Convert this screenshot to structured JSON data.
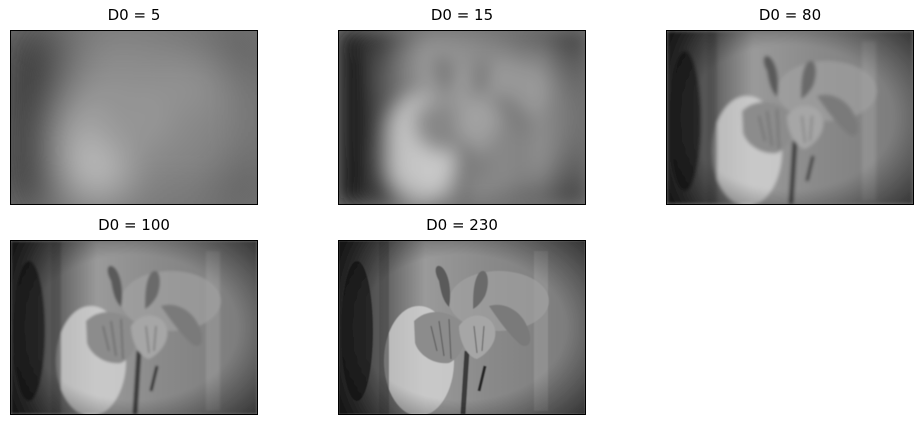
{
  "figure": {
    "panels": [
      {
        "title": "D0 = 5",
        "cutoff": 5,
        "image": "flower-photo-lowpass"
      },
      {
        "title": "D0 = 15",
        "cutoff": 15,
        "image": "flower-photo-lowpass"
      },
      {
        "title": "D0 = 80",
        "cutoff": 80,
        "image": "flower-photo-lowpass"
      },
      {
        "title": "D0 = 100",
        "cutoff": 100,
        "image": "flower-photo-lowpass"
      },
      {
        "title": "D0 = 230",
        "cutoff": 230,
        "image": "flower-photo-lowpass"
      }
    ]
  }
}
